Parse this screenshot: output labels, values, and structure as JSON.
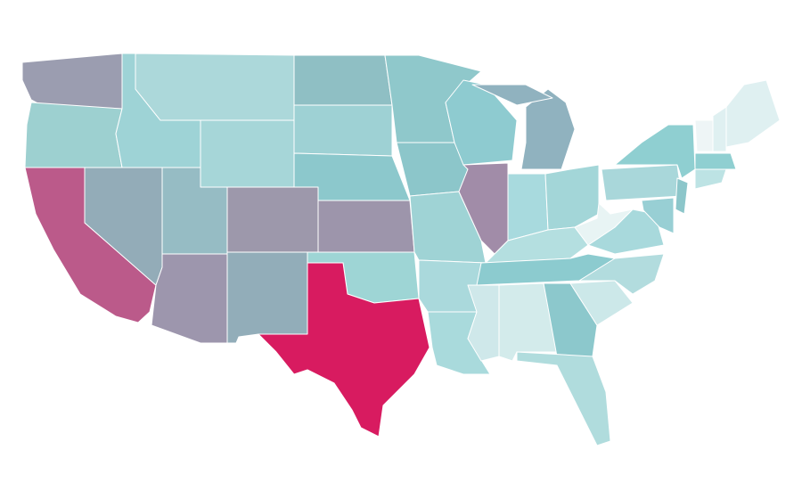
{
  "map": {
    "regions": [
      {
        "color": "#9b9db0"
      },
      {
        "color": "#9dd0d0"
      },
      {
        "color": "#bb5a8a"
      },
      {
        "color": "#93acb8"
      },
      {
        "color": "#9ed3d6"
      },
      {
        "color": "#acd8da"
      },
      {
        "color": "#a6d6d8"
      },
      {
        "color": "#96bcc4"
      },
      {
        "color": "#9d96ad"
      },
      {
        "color": "#9d98ab"
      },
      {
        "color": "#92adb9"
      },
      {
        "color": "#8fbfc4"
      },
      {
        "color": "#9ed1d4"
      },
      {
        "color": "#8cc8cc"
      },
      {
        "color": "#9d95ab"
      },
      {
        "color": "#9ed5d5"
      },
      {
        "color": "#d81b60"
      },
      {
        "color": "#8fc8cb"
      },
      {
        "color": "#8cc6ca"
      },
      {
        "color": "#9fd3d5"
      },
      {
        "color": "#aad9dc"
      },
      {
        "color": "#a9dadc"
      },
      {
        "color": "#8ecbd0"
      },
      {
        "color": "#a18ca8"
      },
      {
        "color": "#90b2bf"
      },
      {
        "color": "#90b2bf"
      },
      {
        "color": "#a8dade"
      },
      {
        "color": "#a3d6d8"
      },
      {
        "color": "#b4dfe0"
      },
      {
        "color": "#8ccbcf"
      },
      {
        "color": "#cfe8ea"
      },
      {
        "color": "#d3ebeb"
      },
      {
        "color": "#8cc8cc"
      },
      {
        "color": "#b0dcdd"
      },
      {
        "color": "#cce8e9"
      },
      {
        "color": "#b2dcde"
      },
      {
        "color": "#a8d9dc"
      },
      {
        "color": "#e8f4f4"
      },
      {
        "color": "#a9d7da"
      },
      {
        "color": "#8fcfd1"
      },
      {
        "color": "#8cc6ca"
      },
      {
        "color": "#98cfd4"
      },
      {
        "color": "#eef5f6"
      },
      {
        "color": "#dff0f1"
      },
      {
        "color": "#dff0f1"
      },
      {
        "color": "#8fcfd1"
      },
      {
        "color": "#bde3e4"
      }
    ]
  }
}
